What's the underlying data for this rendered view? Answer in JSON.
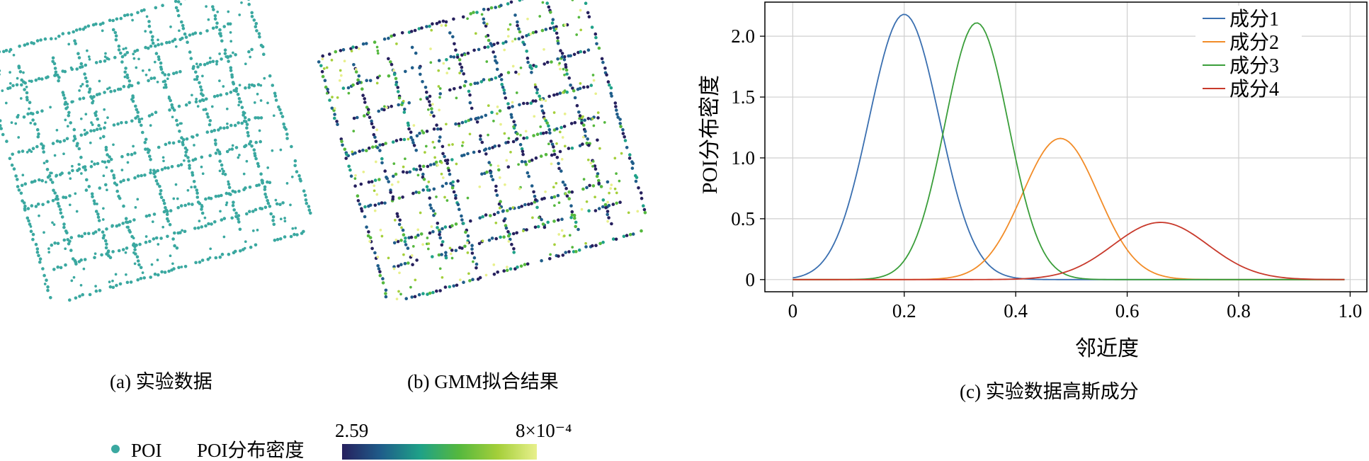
{
  "figure": {
    "panel_a_caption": "(a) 实验数据",
    "panel_b_caption": "(b) GMM拟合结果",
    "panel_c_caption": "(c) 实验数据高斯成分"
  },
  "legend_bottom": {
    "poi_label": "POI",
    "density_label": "POI分布密度",
    "colorbar_min": "2.59",
    "colorbar_max": "8×10⁻⁴",
    "poi_color": "#3aa8a0",
    "colorbar_colors": [
      "#26205e",
      "#1f5d8a",
      "#1fa188",
      "#55b83e",
      "#a4cf3a",
      "#e8f08c"
    ]
  },
  "chart_data": {
    "type": "line",
    "title": "",
    "xlabel": "邻近度",
    "ylabel": "POI分布密度",
    "xlim": [
      -0.05,
      1.03
    ],
    "ylim": [
      -0.1,
      2.28
    ],
    "xticks": [
      0,
      0.2,
      0.4,
      0.6,
      0.8,
      1.0
    ],
    "xtick_labels": [
      "0",
      "0.2",
      "0.4",
      "0.6",
      "0.8",
      "1.0"
    ],
    "yticks": [
      0,
      0.5,
      1.0,
      1.5,
      2.0
    ],
    "ytick_labels": [
      "0",
      "0.5",
      "1.0",
      "1.5",
      "2.0"
    ],
    "grid": true,
    "legend_position": "top-right",
    "x_range": [
      0,
      0.99
    ],
    "series": [
      {
        "name": "成分1",
        "color": "#3a6fb0",
        "mean": 0.2,
        "std": 0.063,
        "peak": 2.18
      },
      {
        "name": "成分2",
        "color": "#f28c28",
        "mean": 0.48,
        "std": 0.068,
        "peak": 1.16
      },
      {
        "name": "成分3",
        "color": "#3a9e3a",
        "mean": 0.33,
        "std": 0.057,
        "peak": 2.11
      },
      {
        "name": "成分4",
        "color": "#c8392b",
        "mean": 0.66,
        "std": 0.085,
        "peak": 0.47
      }
    ]
  }
}
